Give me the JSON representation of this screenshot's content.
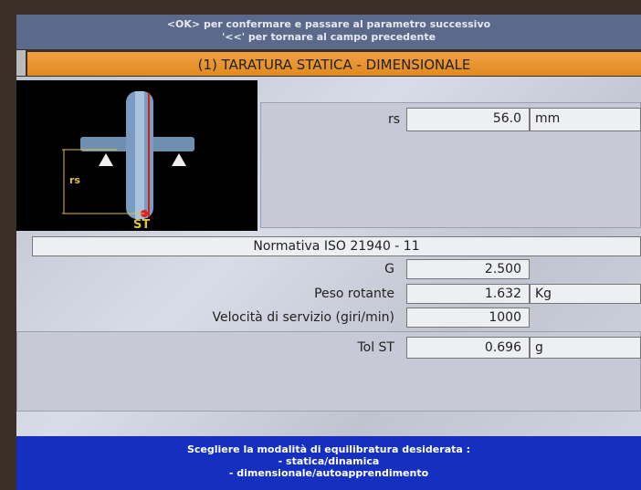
{
  "header": {
    "line1": "<OK> per confermare e passare al parametro successivo",
    "line2": "'<<' per tornare al campo precedente"
  },
  "title": "(1) TARATURA STATICA - DIMENSIONALE",
  "diagram": {
    "rs_label": "rs",
    "st_label": "ST"
  },
  "rs_field": {
    "label": "rs",
    "value": "56.0",
    "unit": "mm"
  },
  "standard": "Normativa ISO 21940 - 11",
  "rows": [
    {
      "label": "G",
      "value": "2.500"
    },
    {
      "label": "Peso rotante",
      "value": "1.632",
      "unit": "Kg"
    },
    {
      "label": "Velocità di servizio (giri/min)",
      "value": "1000"
    }
  ],
  "tolerance": {
    "label": "Tol ST",
    "value": "0.696",
    "unit": "g"
  },
  "footer": {
    "line1": "Scegliere la modalità di equilibratura desiderata :",
    "line2": "- statica/dinamica",
    "line3": "- dimensionale/autoapprendimento"
  }
}
